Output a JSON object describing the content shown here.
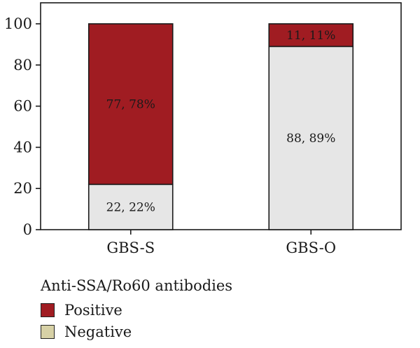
{
  "chart_data": {
    "type": "bar",
    "stacked": true,
    "categories": [
      "GBS-S",
      "GBS-O"
    ],
    "series": [
      {
        "name": "Negative",
        "values": [
          22,
          89
        ],
        "labels": [
          "22, 22%",
          "88, 89%"
        ],
        "color": "#e6e6e6"
      },
      {
        "name": "Positive",
        "values": [
          78,
          11
        ],
        "labels": [
          "77, 78%",
          "11, 11%"
        ],
        "color": "#a01c22"
      }
    ],
    "ylim": [
      0,
      100
    ],
    "yticks": [
      0,
      20,
      40,
      60,
      80,
      100
    ],
    "xlabel": "",
    "ylabel": "",
    "legend": {
      "title": "Anti-SSA/Ro60 antibodies",
      "placement": "bottom-left",
      "items": [
        {
          "name": "Positive",
          "color": "#a01c22"
        },
        {
          "name": "Negative",
          "color": "#d7d1a6"
        }
      ]
    }
  }
}
